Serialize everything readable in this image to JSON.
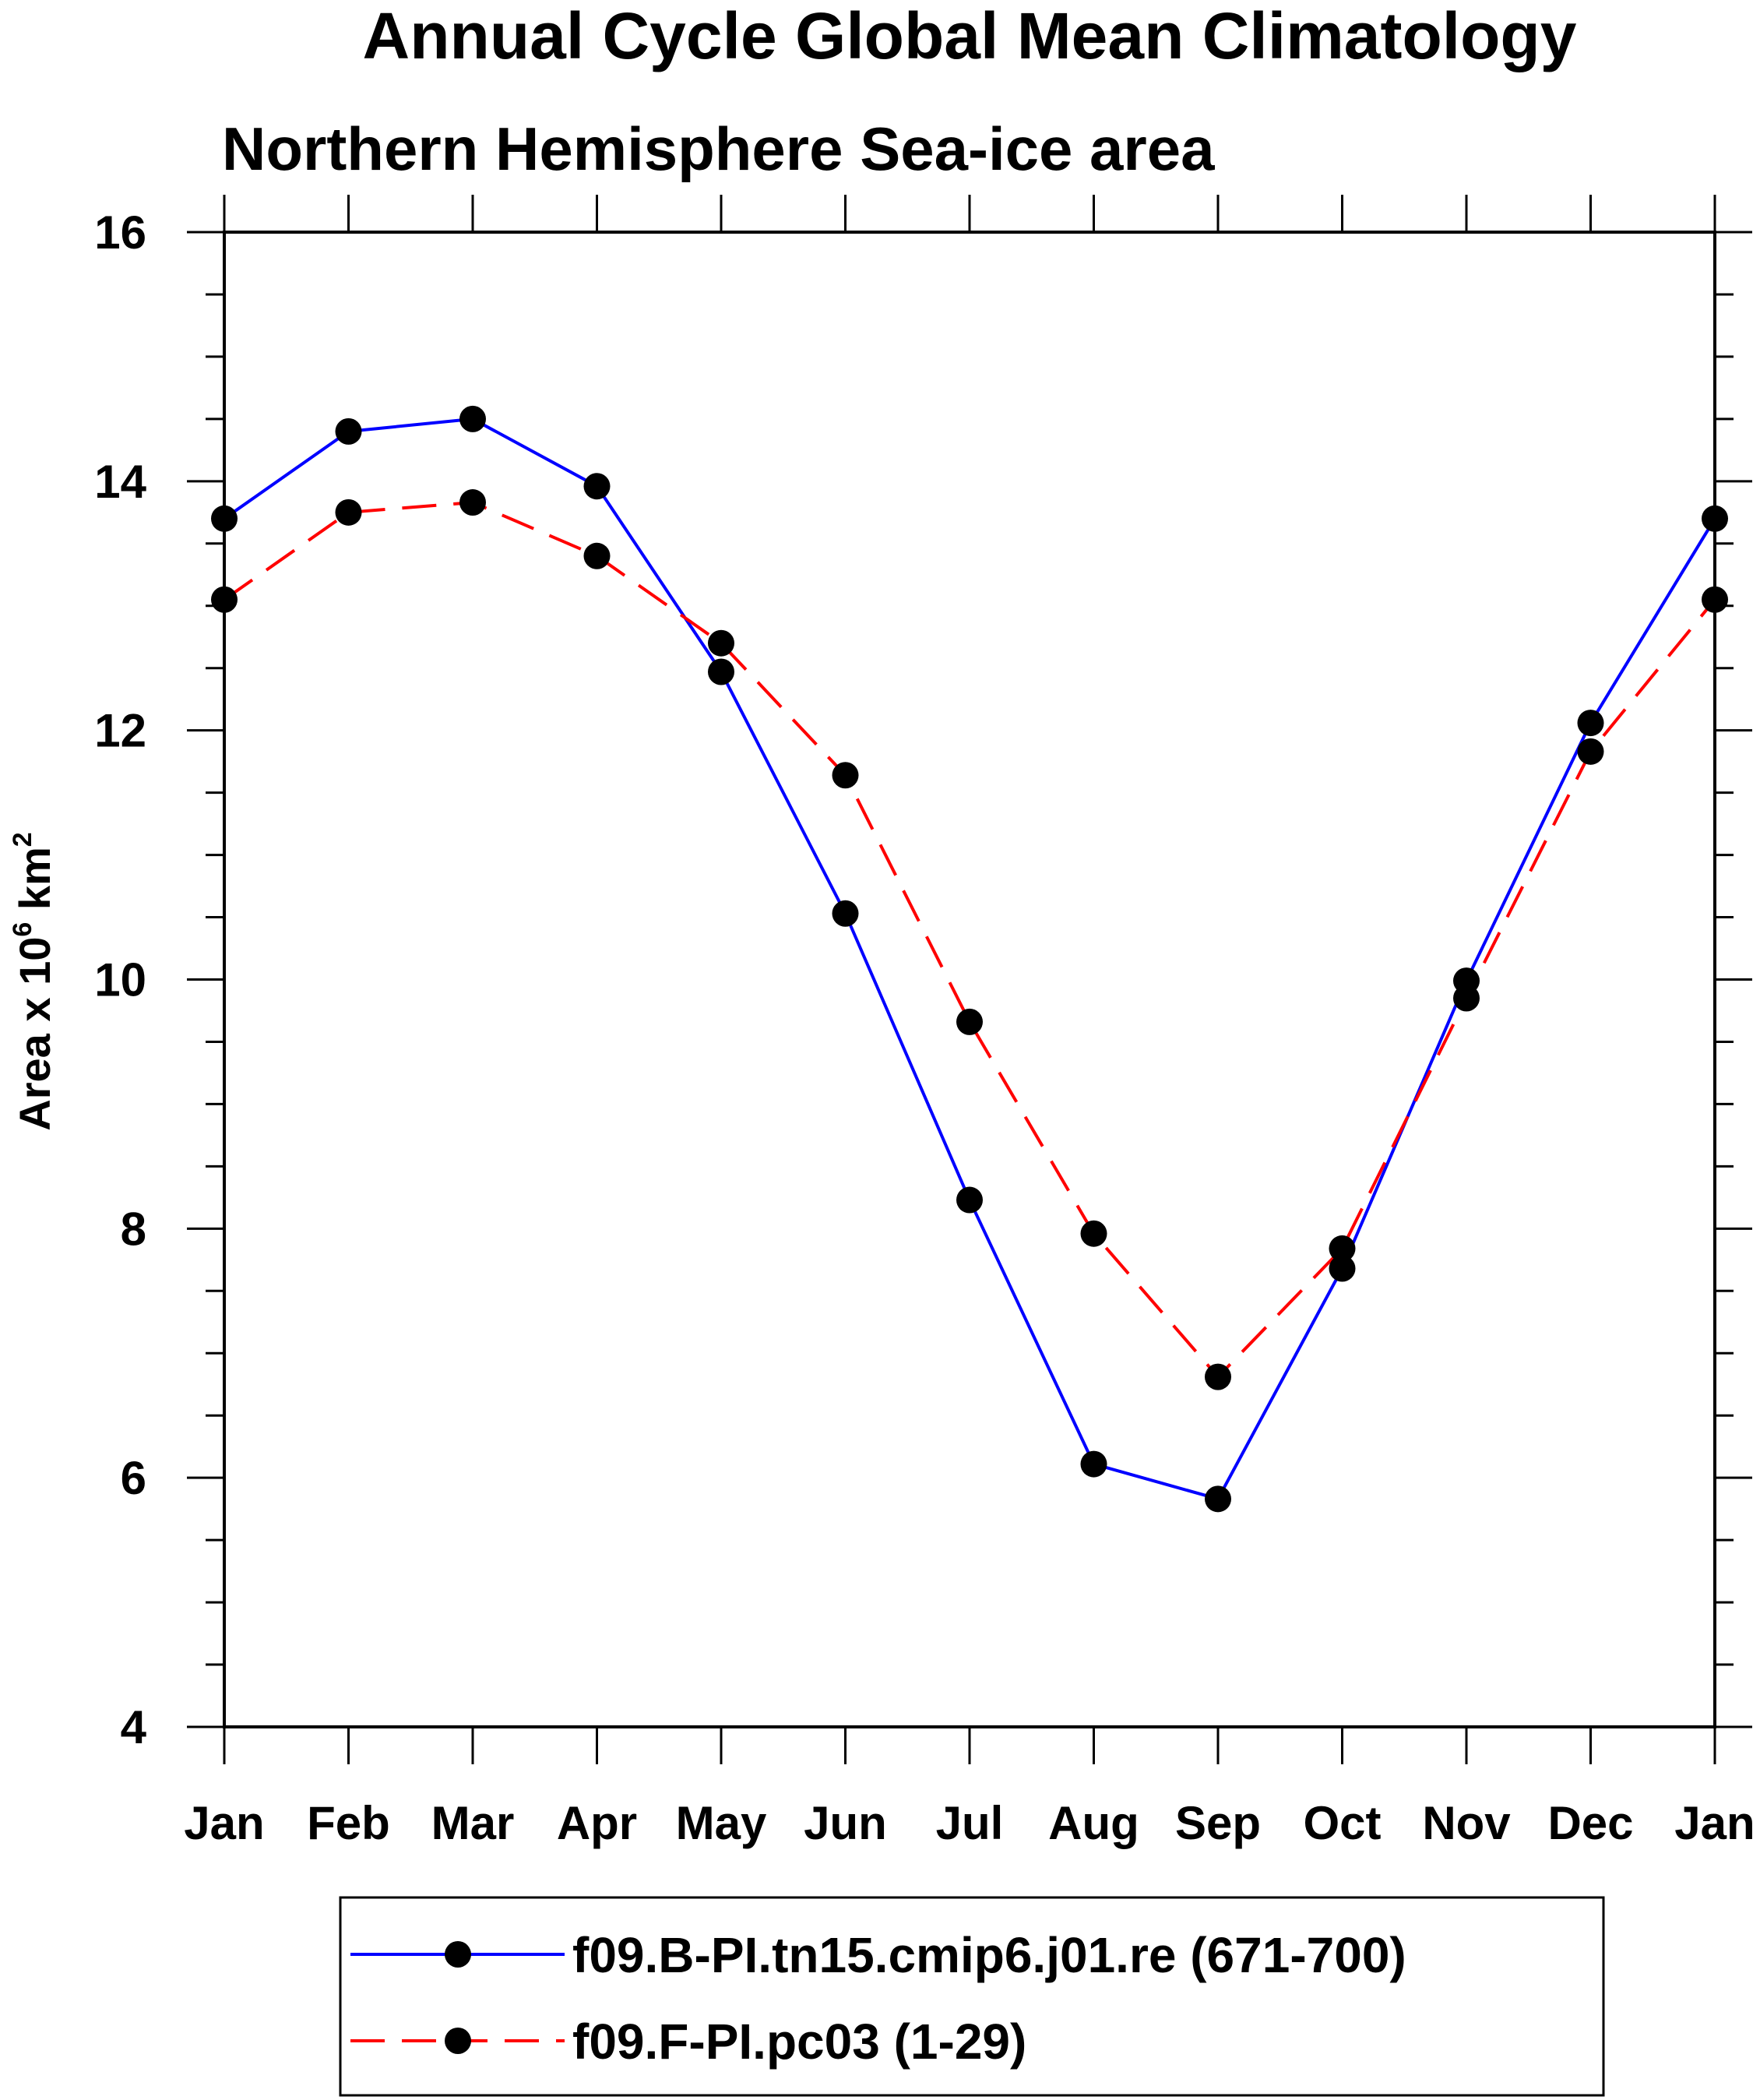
{
  "chart_data": {
    "type": "line",
    "title": "Annual Cycle Global Mean Climatology",
    "subtitle": "Northern Hemisphere Sea-ice area",
    "ylabel": "Area x 10",
    "ylabel_superscript1": "6",
    "ylabel_unit": " km",
    "ylabel_superscript2": "2",
    "xlabel": "",
    "categories": [
      "Jan",
      "Feb",
      "Mar",
      "Apr",
      "May",
      "Jun",
      "Jul",
      "Aug",
      "Sep",
      "Oct",
      "Nov",
      "Dec",
      "Jan"
    ],
    "ylim": [
      4,
      16
    ],
    "yticks": [
      4,
      6,
      8,
      10,
      12,
      14,
      16
    ],
    "y_minor_step": 0.5,
    "grid": false,
    "legend_position": "bottom",
    "series": [
      {
        "name": "f09.B-PI.tn15.cmip6.j01.re (671-700)",
        "color": "#0000ff",
        "line_style": "solid",
        "marker_color": "#000000",
        "values": [
          13.7,
          14.4,
          14.5,
          13.96,
          12.47,
          10.53,
          8.23,
          6.11,
          5.83,
          7.68,
          9.99,
          12.06,
          13.7
        ]
      },
      {
        "name": "f09.F-PI.pc03 (1-29)",
        "color": "#ff0000",
        "line_style": "dashed",
        "marker_color": "#000000",
        "values": [
          13.05,
          13.75,
          13.83,
          13.4,
          12.7,
          11.64,
          9.66,
          7.96,
          6.81,
          7.84,
          9.85,
          11.83,
          13.05
        ]
      }
    ]
  }
}
